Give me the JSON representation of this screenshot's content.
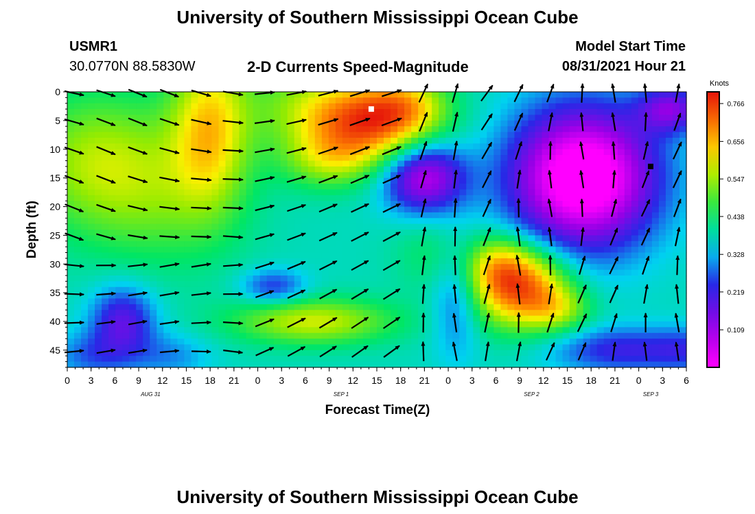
{
  "header": {
    "title_top": "University of Southern Mississippi Ocean Cube",
    "title_bottom": "University of Southern Mississippi Ocean Cube",
    "station_id": "USMR1",
    "station_coords": "30.0770N  88.5830W",
    "plot_title": "2-D Currents Speed-Magnitude",
    "model_start_label": "Model Start Time",
    "model_start_value": "08/31/2021 Hour 21"
  },
  "chart_data": {
    "type": "heatmap",
    "xlabel": "Forecast Time(Z)",
    "ylabel": "Depth (ft)",
    "x_tick_labels": [
      "0",
      "3",
      "6",
      "9",
      "12",
      "15",
      "18",
      "21",
      "0",
      "3",
      "6",
      "9",
      "12",
      "15",
      "18",
      "21",
      "0",
      "3",
      "6",
      "9",
      "12",
      "15",
      "18",
      "21",
      "0",
      "3",
      "6"
    ],
    "date_labels": [
      {
        "text": "AUG 31",
        "tick_index": 4
      },
      {
        "text": "SEP 1",
        "tick_index": 12
      },
      {
        "text": "SEP 2",
        "tick_index": 20
      },
      {
        "text": "SEP 3",
        "tick_index": 25
      }
    ],
    "y_ticks": [
      0,
      5,
      10,
      15,
      20,
      25,
      30,
      35,
      40,
      45
    ],
    "ylim": [
      0,
      48
    ],
    "xlim_hours": [
      0,
      78
    ],
    "colorbar": {
      "label": "Knots",
      "ticks": [
        "0.766",
        "0.656",
        "0.547",
        "0.438",
        "0.328",
        "0.219",
        "0.109"
      ],
      "range": [
        0,
        0.8
      ]
    },
    "colors": {
      "low": "#ff00ff",
      "high": "#e01010",
      "arrow": "#000000"
    },
    "blobs": [
      {
        "x": 4,
        "y": 12,
        "sx": 10,
        "sy": 12,
        "a": 0.17
      },
      {
        "x": 12,
        "y": 20,
        "sx": 10,
        "sy": 12,
        "a": 0.08
      },
      {
        "x": 18,
        "y": 6,
        "sx": 5,
        "sy": 14,
        "a": 0.24
      },
      {
        "x": 29,
        "y": 2,
        "sx": 7,
        "sy": 8,
        "a": 0.1
      },
      {
        "x": 38,
        "y": 5,
        "sx": 8,
        "sy": 7,
        "a": 0.36
      },
      {
        "x": 43,
        "y": 2,
        "sx": 5,
        "sy": 5,
        "a": 0.12
      },
      {
        "x": 33,
        "y": 12,
        "sx": 6,
        "sy": 5,
        "a": 0.14
      },
      {
        "x": 31,
        "y": 40,
        "sx": 10,
        "sy": 4,
        "a": 0.2
      },
      {
        "x": 57,
        "y": 34,
        "sx": 6,
        "sy": 7,
        "a": 0.36
      },
      {
        "x": 54,
        "y": 30,
        "sx": 4,
        "sy": 5,
        "a": 0.12
      },
      {
        "x": 62,
        "y": 38,
        "sx": 4,
        "sy": 4,
        "a": 0.12
      },
      {
        "x": 46,
        "y": 28,
        "sx": 5,
        "sy": 7,
        "a": 0.06
      },
      {
        "x": 7,
        "y": 40,
        "sx": 4,
        "sy": 6,
        "a": -0.2
      },
      {
        "x": 3,
        "y": 46,
        "sx": 5,
        "sy": 4,
        "a": -0.1
      },
      {
        "x": 13,
        "y": 46,
        "sx": 5,
        "sy": 4,
        "a": -0.08
      },
      {
        "x": 26,
        "y": 34,
        "sx": 4,
        "sy": 3,
        "a": -0.14
      },
      {
        "x": 45,
        "y": 15,
        "sx": 5,
        "sy": 6,
        "a": -0.3
      },
      {
        "x": 49,
        "y": 36,
        "sx": 3,
        "sy": 10,
        "a": -0.12
      },
      {
        "x": 65,
        "y": 15,
        "sx": 9,
        "sy": 12,
        "a": -0.46
      },
      {
        "x": 76,
        "y": 3,
        "sx": 4,
        "sy": 4,
        "a": -0.22
      },
      {
        "x": 70,
        "y": 45,
        "sx": 9,
        "sy": 4,
        "a": -0.16
      },
      {
        "x": 78,
        "y": 45,
        "sx": 4,
        "sy": 4,
        "a": -0.08
      }
    ],
    "arrow_rows_depth": [
      0,
      5,
      10,
      15,
      20,
      25,
      30,
      35,
      40,
      45
    ],
    "arrow_cols_hours": [
      0,
      4,
      8,
      12,
      16,
      20,
      24,
      28,
      32,
      36,
      40,
      44,
      48,
      52,
      56,
      60,
      64,
      68,
      72,
      76
    ],
    "markers": [
      {
        "hour": 38.3,
        "depth": 3,
        "color": "#ffffff"
      },
      {
        "hour": 73.5,
        "depth": 13,
        "color": "#000000"
      }
    ]
  }
}
